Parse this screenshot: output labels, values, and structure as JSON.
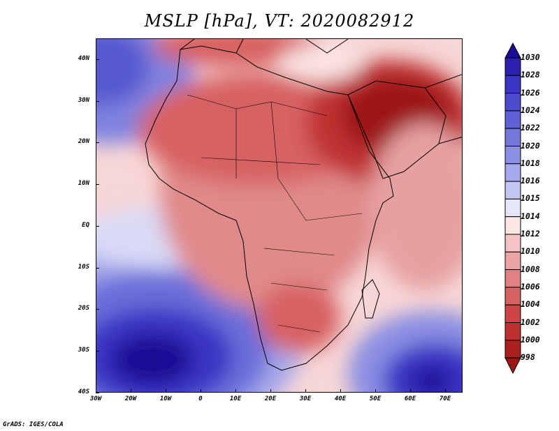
{
  "title": "MSLP [hPa], VT: 2020082912",
  "footer": "GrADS: IGES/COLA",
  "map": {
    "region": "Africa",
    "lon_range": [
      -30,
      75
    ],
    "lat_range": [
      -40,
      45
    ],
    "y_tick_labels": [
      "40N",
      "30N",
      "20N",
      "10N",
      "EQ",
      "10S",
      "20S",
      "30S",
      "40S"
    ],
    "y_tick_values": [
      40,
      30,
      20,
      10,
      0,
      -10,
      -20,
      -30,
      -40
    ],
    "x_tick_labels": [
      "30W",
      "20W",
      "10W",
      "0",
      "10E",
      "20E",
      "30E",
      "40E",
      "50E",
      "60E",
      "70E"
    ],
    "x_tick_values": [
      -30,
      -20,
      -10,
      0,
      10,
      20,
      30,
      40,
      50,
      60,
      70
    ]
  },
  "colorbar": {
    "labels": [
      "1030",
      "1028",
      "1026",
      "1024",
      "1022",
      "1020",
      "1018",
      "1016",
      "1015",
      "1014",
      "1012",
      "1010",
      "1008",
      "1006",
      "1004",
      "1002",
      "1000",
      "998"
    ],
    "colors": [
      "#1a0a96",
      "#2b1fb0",
      "#3a35c4",
      "#4b4cce",
      "#5e62d6",
      "#7477dc",
      "#8b8fe3",
      "#a5a8ea",
      "#c4c6f2",
      "#e6e6fa",
      "#fbe5e5",
      "#f4c4c4",
      "#eba3a3",
      "#e18282",
      "#d76262",
      "#cc4646",
      "#bf3030",
      "#ad1f1f",
      "#9c1616"
    ]
  }
}
